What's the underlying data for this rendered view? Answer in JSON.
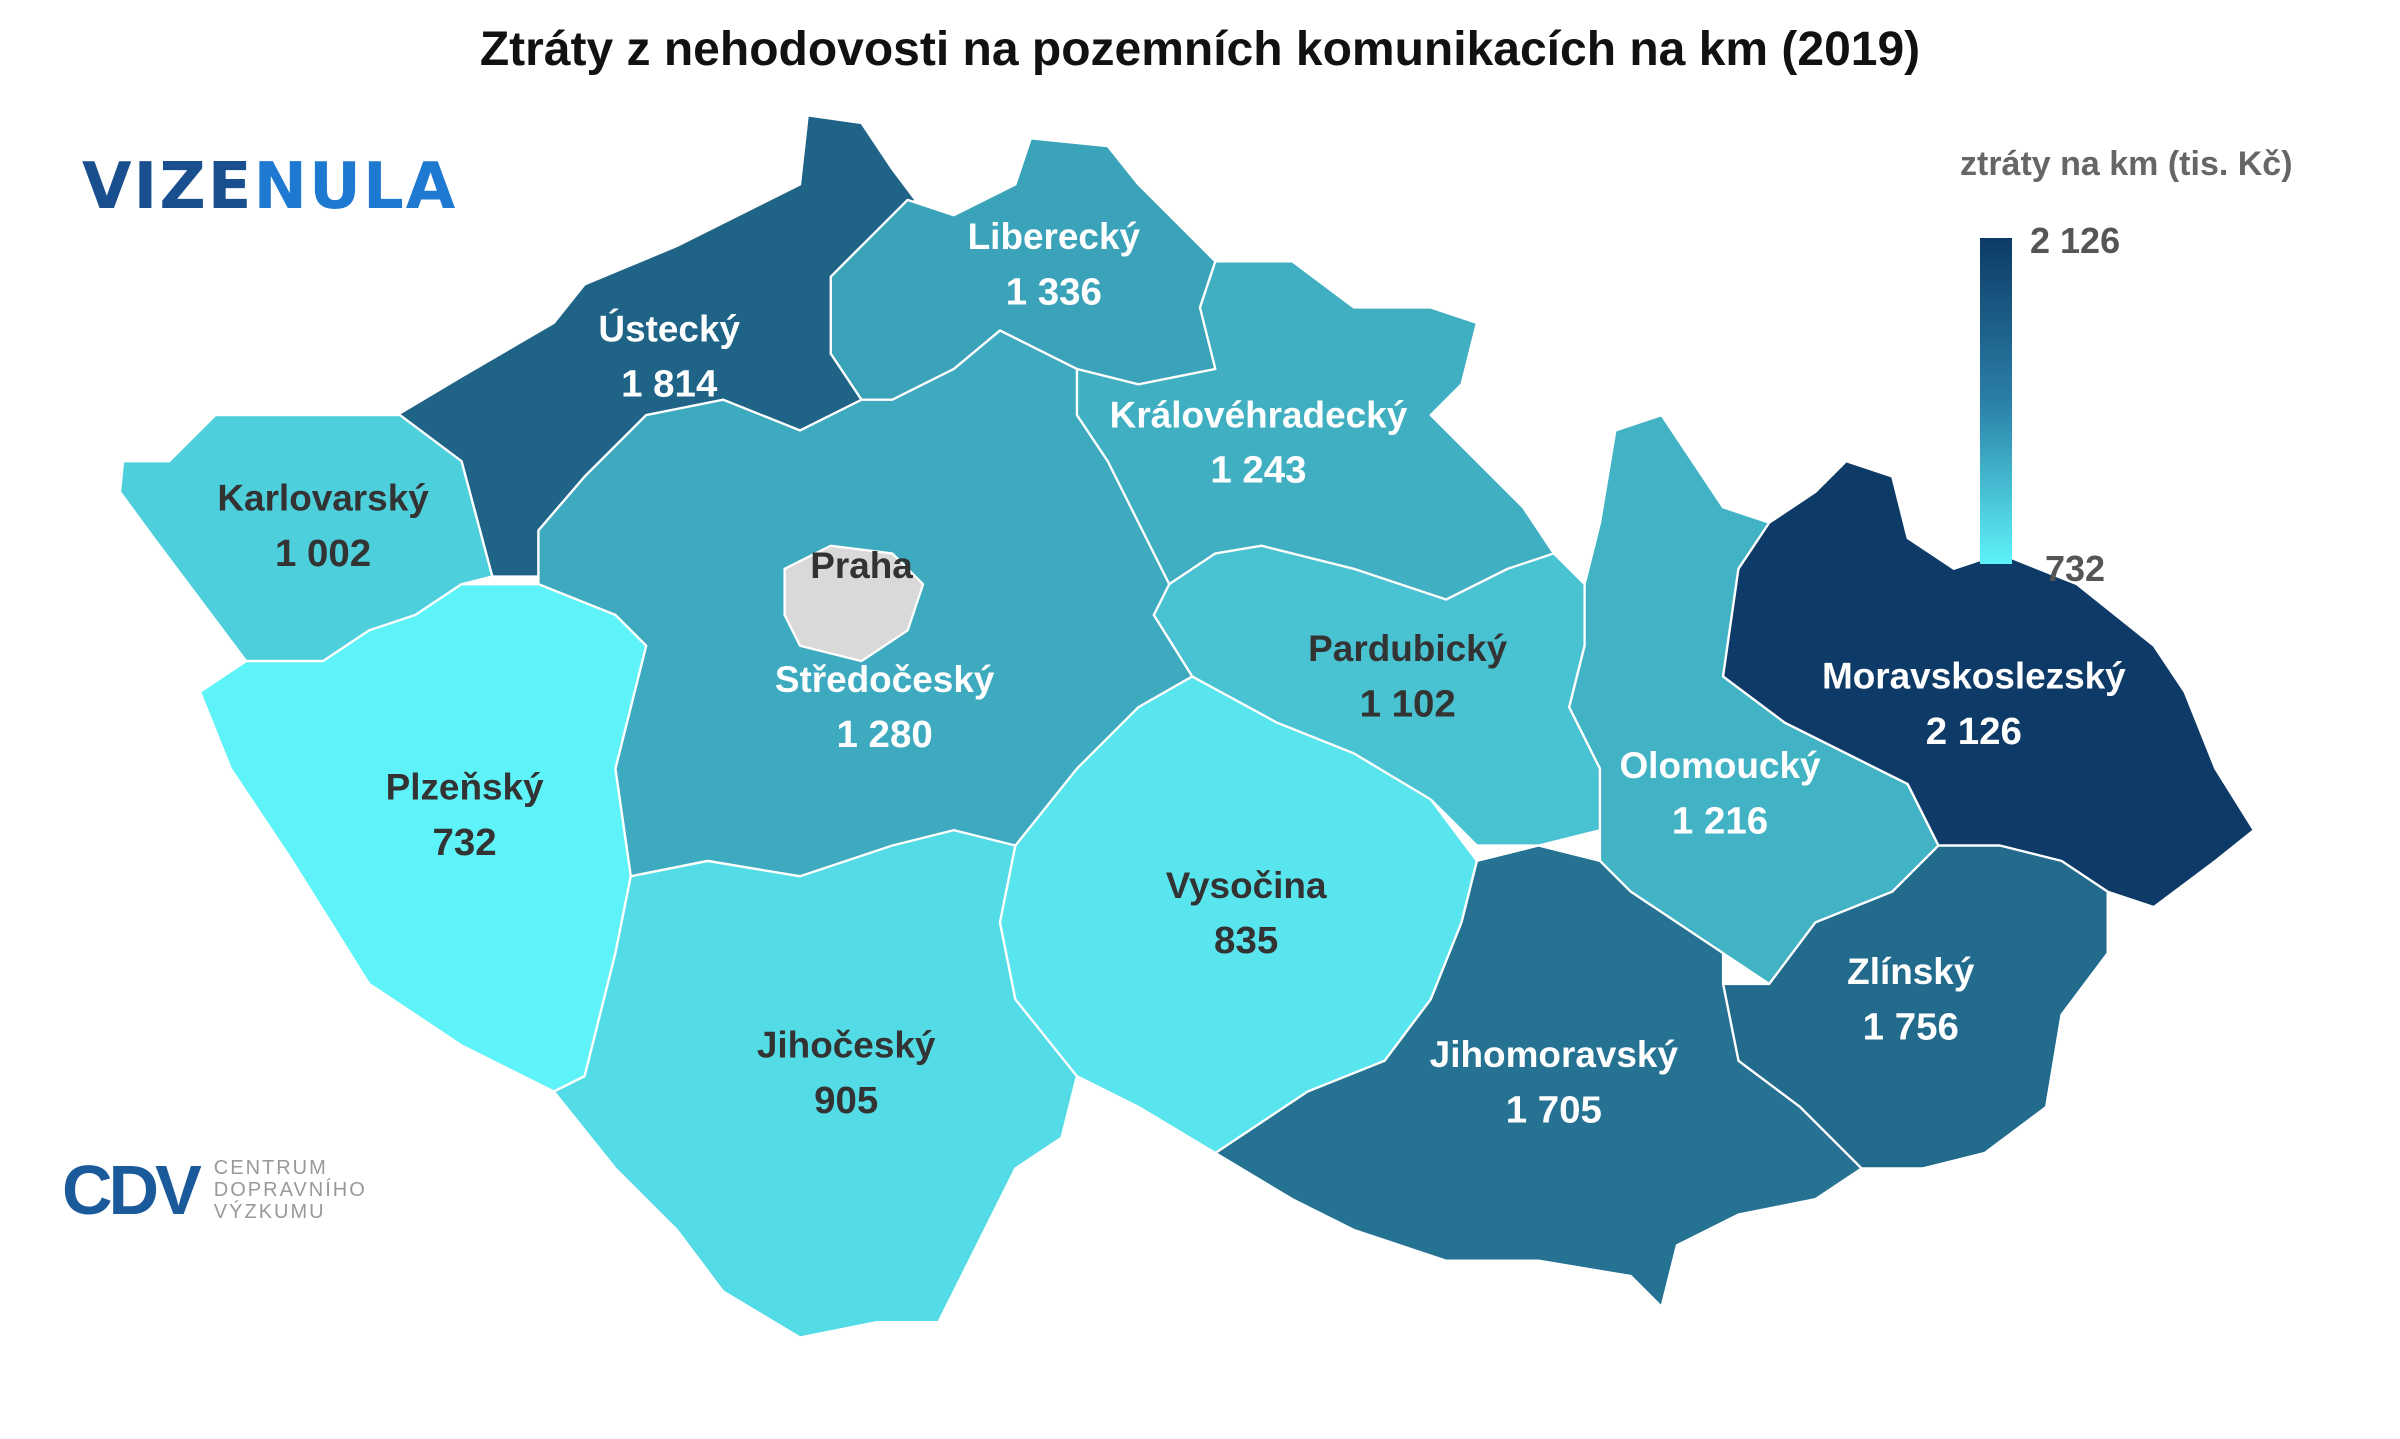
{
  "title": "Ztráty z nehodovosti na pozemních komunikacích na km (2019)",
  "legend": {
    "title": "ztráty na km (tis. Kč)",
    "max": "2 126",
    "min": "732",
    "color_max": "#0d3a66",
    "color_min": "#5ef3f8"
  },
  "logos": {
    "vize_a": "VIZE",
    "vize_b": "NULA",
    "cdv_mark": "CDV",
    "cdv_line1": "CENTRUM",
    "cdv_line2": "DOPRAVNÍHO",
    "cdv_line3": "VÝZKUMU"
  },
  "no_data_color": "#d9d9d9",
  "regions": [
    {
      "name": "Ústecký",
      "value": 1814,
      "label": "1 814"
    },
    {
      "name": "Karlovarský",
      "value": 1002,
      "label": "1 002"
    },
    {
      "name": "Liberecký",
      "value": 1336,
      "label": "1 336"
    },
    {
      "name": "Královéhradecký",
      "value": 1243,
      "label": "1 243"
    },
    {
      "name": "Středočeský",
      "value": 1280,
      "label": "1 280"
    },
    {
      "name": "Praha",
      "value": null,
      "label": ""
    },
    {
      "name": "Plzeňský",
      "value": 732,
      "label": "732"
    },
    {
      "name": "Jihočeský",
      "value": 905,
      "label": "905"
    },
    {
      "name": "Vysočina",
      "value": 835,
      "label": "835"
    },
    {
      "name": "Pardubický",
      "value": 1102,
      "label": "1 102"
    },
    {
      "name": "Olomoucký",
      "value": 1216,
      "label": "1 216"
    },
    {
      "name": "Moravskoslezský",
      "value": 2126,
      "label": "2 126"
    },
    {
      "name": "Zlínský",
      "value": 1756,
      "label": "1 756"
    },
    {
      "name": "Jihomoravský",
      "value": 1705,
      "label": "1 705"
    }
  ]
}
